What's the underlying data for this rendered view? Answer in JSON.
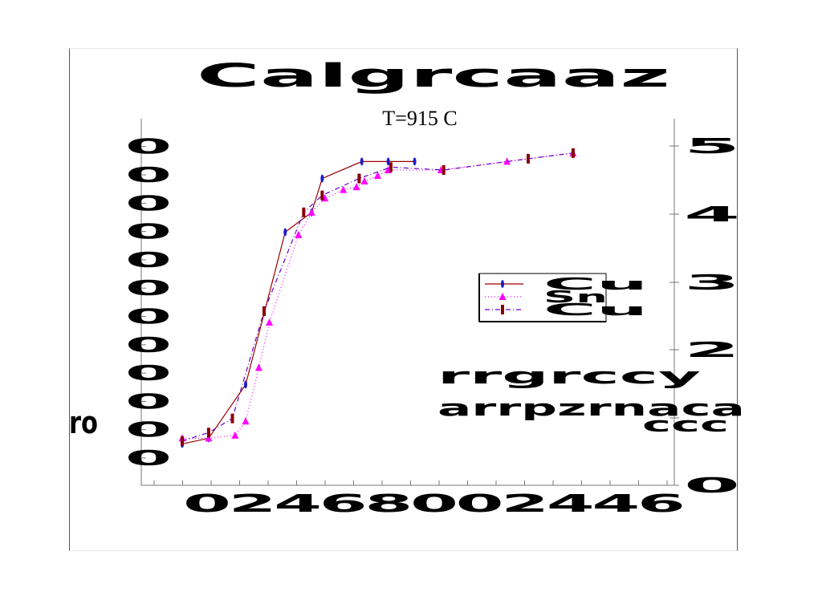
{
  "chart_data": {
    "type": "line",
    "title": "T=915 C",
    "xlabel": "",
    "ylabel": "",
    "x_tick_labels": [
      "0",
      "2",
      "4",
      "6",
      "8",
      "0",
      "0",
      "2",
      "4",
      "4",
      "6"
    ],
    "y_tick_labels": [
      "0",
      "0",
      "0",
      "0",
      "0",
      "0",
      "0",
      "0",
      "0",
      "0",
      "0",
      "0"
    ],
    "y2_tick_labels": [
      "0",
      "2",
      "3",
      "4",
      "5"
    ],
    "ylim": [
      0,
      1.1
    ],
    "legend_position": "right",
    "series": [
      {
        "name": "",
        "color": "#990000",
        "line": "solid",
        "marker": "blue-diamond",
        "x": [
          0,
          1,
          2.4,
          3.9,
          4.9,
          5.3,
          6.8,
          7.8,
          8.8
        ],
        "y": [
          0.05,
          0.07,
          0.26,
          0.8,
          0.87,
          0.99,
          1.05,
          1.05,
          1.05
        ]
      },
      {
        "name": "",
        "color": "#ff00ff",
        "line": "dotted",
        "marker": "magenta-triangle",
        "x": [
          0,
          1,
          2,
          2.4,
          2.9,
          3.3,
          4.4,
          4.9,
          5.4,
          6.1,
          6.6,
          6.9,
          7.4,
          7.8,
          9.8,
          12.3,
          14.8
        ],
        "y": [
          0.07,
          0.07,
          0.08,
          0.13,
          0.32,
          0.48,
          0.79,
          0.87,
          0.92,
          0.95,
          0.96,
          0.98,
          1.0,
          1.02,
          1.02,
          1.05,
          1.08
        ]
      },
      {
        "name": "",
        "color": "#6600cc",
        "line": "dashdot",
        "marker": "darkred-rect",
        "x": [
          0,
          1,
          1.9,
          3.1,
          4.6,
          5.3,
          6.7,
          7.9,
          9.9,
          13.1,
          14.8
        ],
        "y": [
          0.06,
          0.09,
          0.14,
          0.52,
          0.87,
          0.93,
          0.99,
          1.03,
          1.02,
          1.06,
          1.08
        ]
      }
    ]
  },
  "overlay": {
    "title_scribble": "Calgrcaaz",
    "right_block_1": "rrgrccy",
    "right_block_2": "arrpzrnaca",
    "left_scribble": "ro",
    "right_small": "ccc"
  }
}
